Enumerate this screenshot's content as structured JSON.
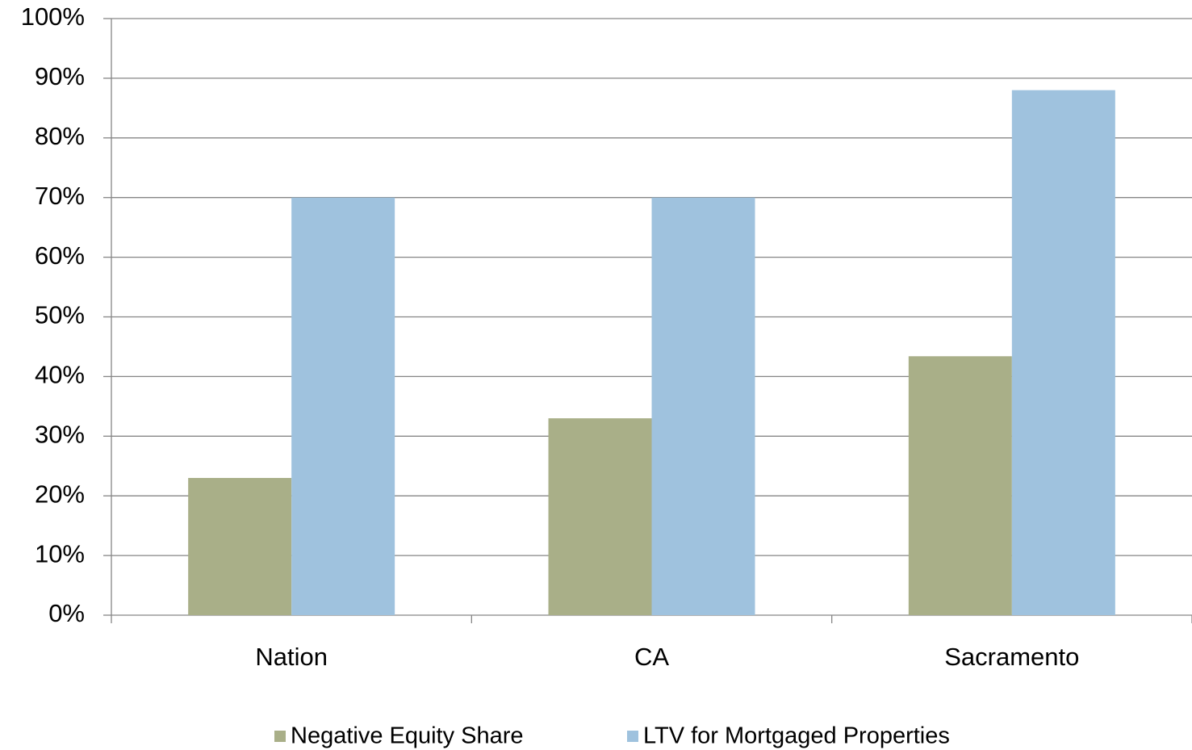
{
  "chart_data": {
    "type": "bar",
    "categories": [
      "Nation",
      "CA",
      "Sacramento"
    ],
    "series": [
      {
        "name": "Negative Equity Share",
        "color": "#a9af88",
        "values": [
          23,
          33,
          43.4
        ]
      },
      {
        "name": "LTV for Mortgaged Properties",
        "color": "#9fc2de",
        "values": [
          70,
          70,
          88
        ]
      }
    ],
    "ylim": [
      0,
      100
    ],
    "yticks": [
      {
        "value": 0,
        "label": "0%"
      },
      {
        "value": 10,
        "label": "10%"
      },
      {
        "value": 20,
        "label": "20%"
      },
      {
        "value": 30,
        "label": "30%"
      },
      {
        "value": 40,
        "label": "40%"
      },
      {
        "value": 50,
        "label": "50%"
      },
      {
        "value": 60,
        "label": "60%"
      },
      {
        "value": 70,
        "label": "70%"
      },
      {
        "value": 80,
        "label": "80%"
      },
      {
        "value": 90,
        "label": "90%"
      },
      {
        "value": 100,
        "label": "100%"
      }
    ],
    "grid": true,
    "legend": "bottom"
  }
}
